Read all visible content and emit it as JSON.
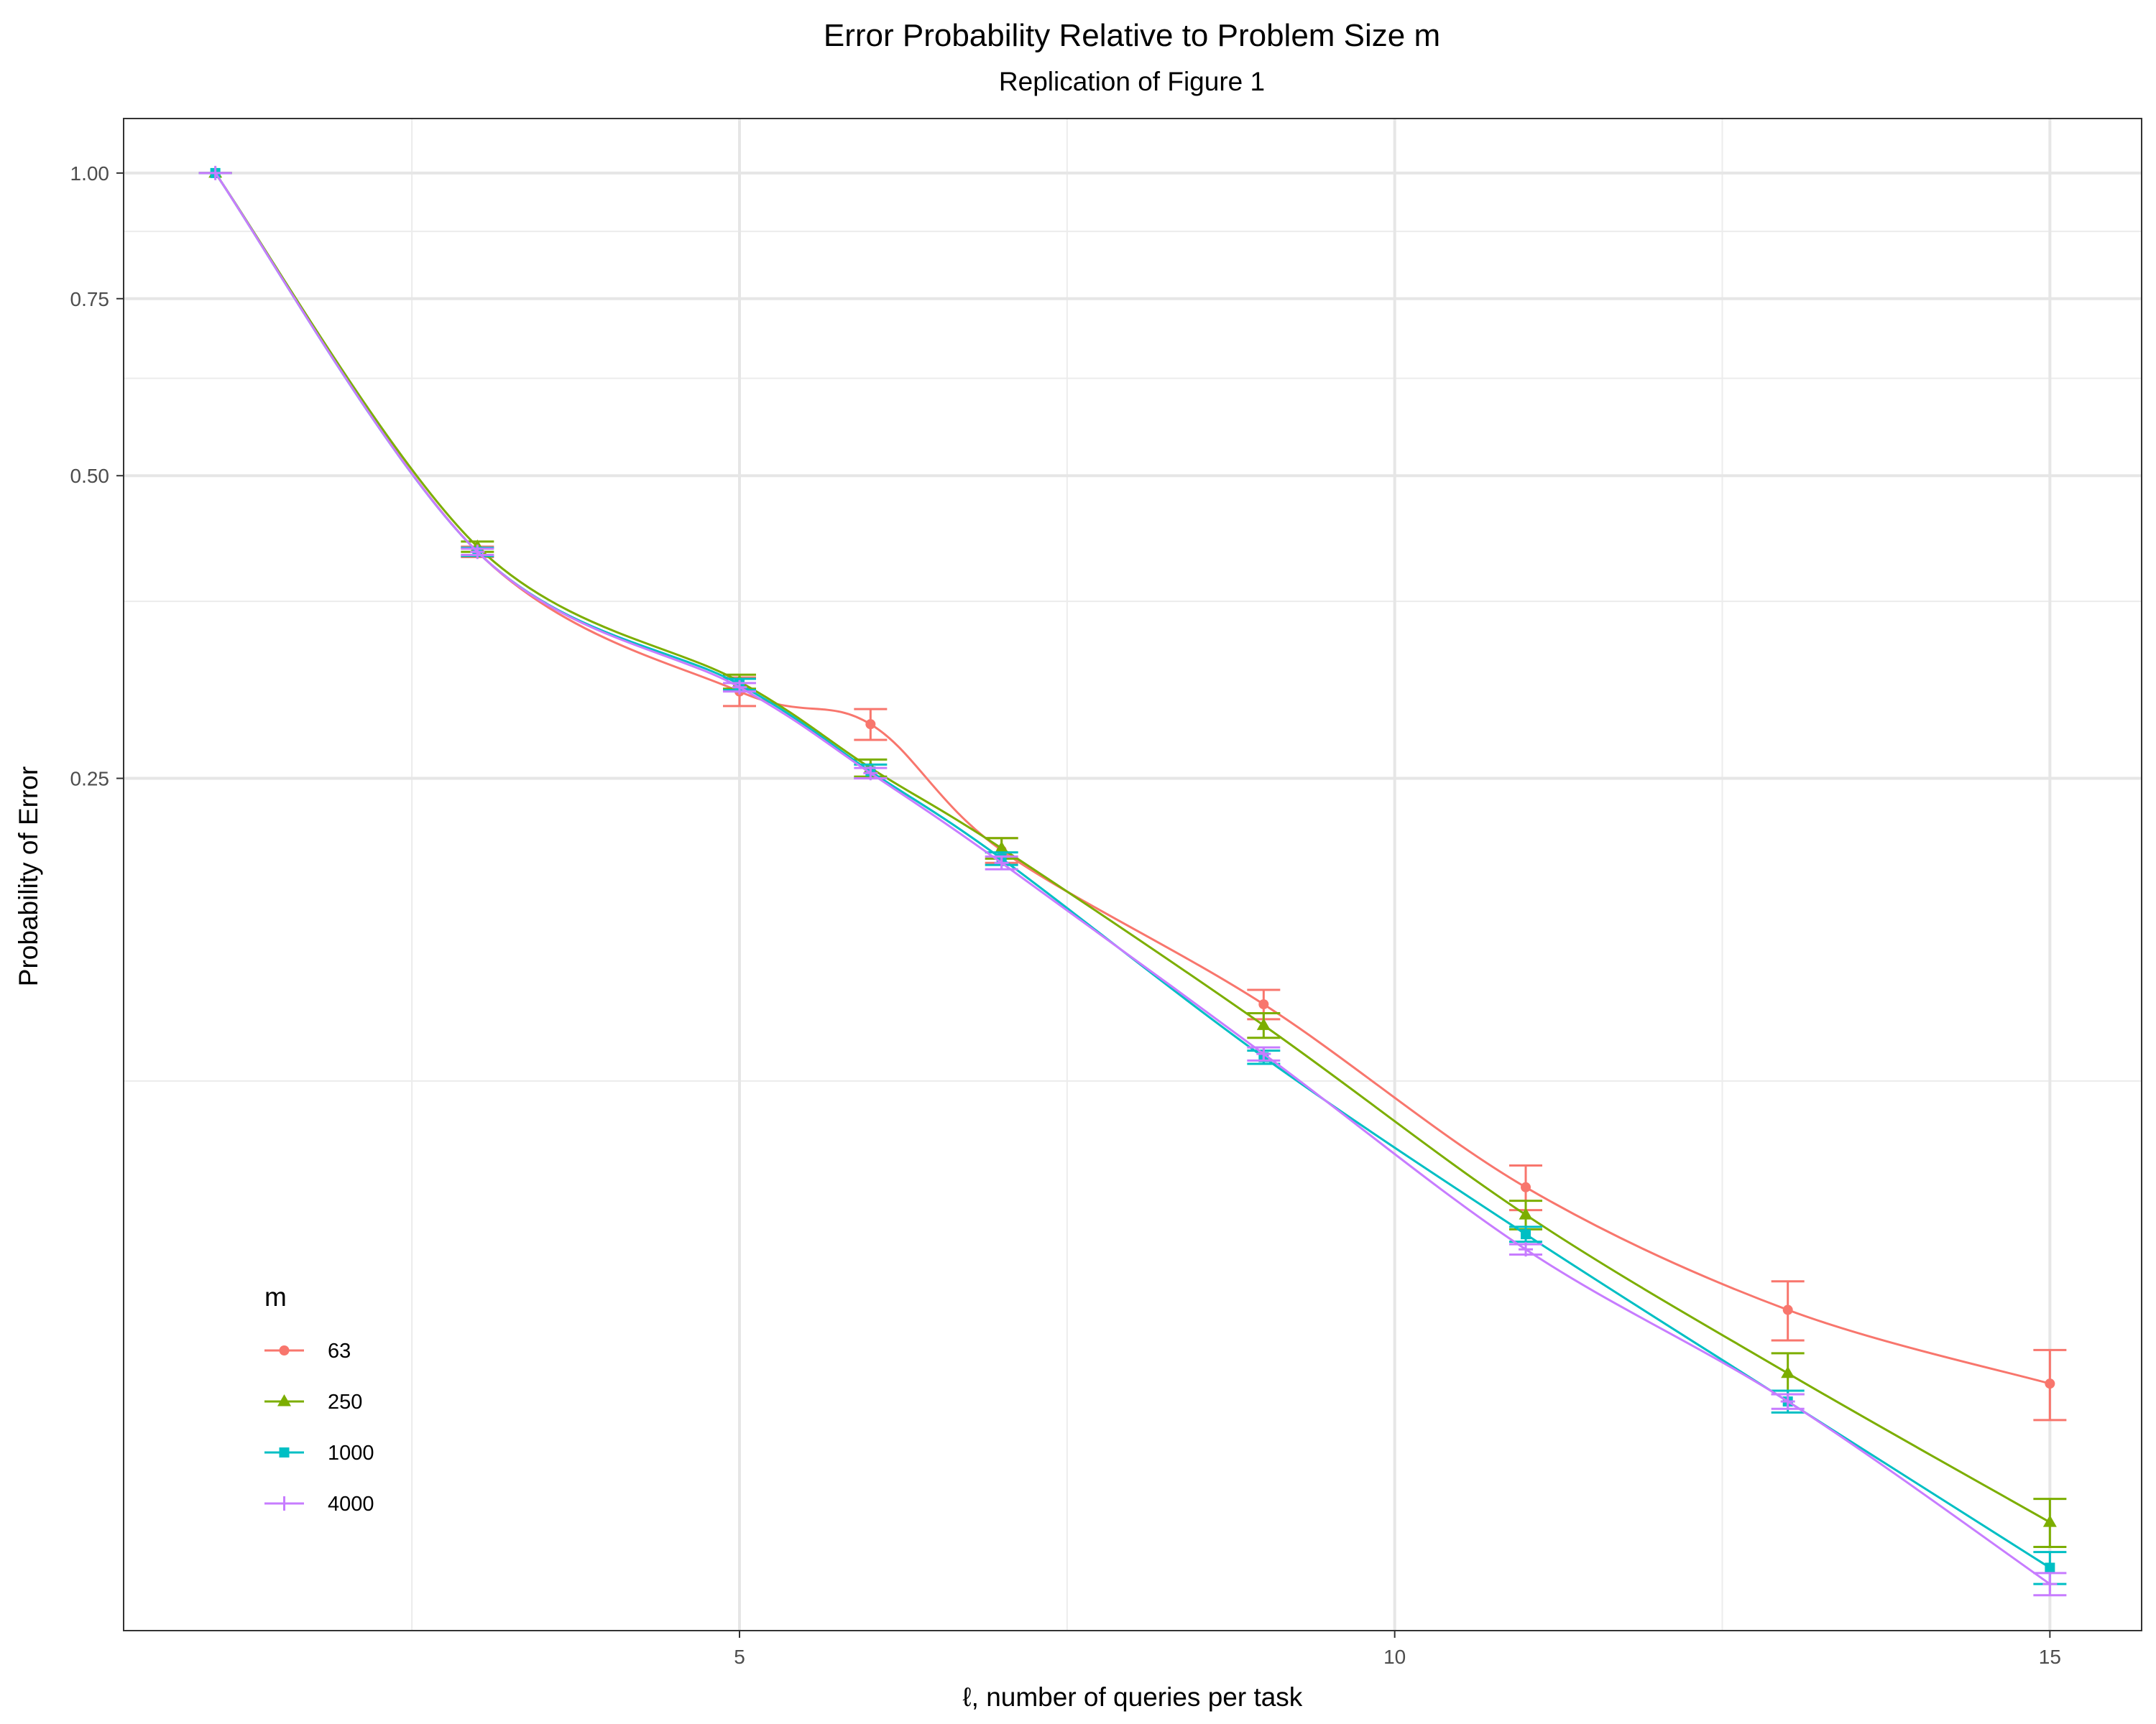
{
  "chart_data": {
    "type": "line",
    "title": "Error Probability Relative to Problem Size m",
    "subtitle": "Replication of Figure 1",
    "xlabel": "ℓ, number of queries per task",
    "ylabel": "Probability of Error",
    "x_scale": "linear",
    "y_scale": "log",
    "xlim": [
      0.3,
      15.7
    ],
    "ylim": [
      0.0355,
      1.133
    ],
    "x_ticks": [
      5,
      10,
      15
    ],
    "x_tick_labels": [
      "5",
      "10",
      "15"
    ],
    "y_ticks": [
      0.25,
      0.5,
      0.75,
      1.0
    ],
    "y_tick_labels": [
      "0.25",
      "0.50",
      "0.75",
      "1.00"
    ],
    "y_minor_gridlines": [
      0.125,
      0.375,
      0.625,
      0.875
    ],
    "grid": true,
    "legend": {
      "title": "m",
      "position": "bottom-left"
    },
    "series": [
      {
        "name": "63",
        "color": "#F8766D",
        "marker": "circle",
        "x": [
          1,
          3,
          5,
          6,
          7,
          9,
          11,
          13,
          15
        ],
        "y": [
          1.0,
          0.42,
          0.305,
          0.283,
          0.212,
          0.149,
          0.098,
          0.074,
          0.0625
        ],
        "err_low": [
          1.0,
          0.415,
          0.295,
          0.273,
          0.206,
          0.144,
          0.093,
          0.069,
          0.0575
        ],
        "err_high": [
          1.0,
          0.425,
          0.315,
          0.293,
          0.218,
          0.154,
          0.103,
          0.079,
          0.0675
        ]
      },
      {
        "name": "250",
        "color": "#7CAE00",
        "marker": "triangle",
        "x": [
          1,
          3,
          5,
          6,
          7,
          9,
          11,
          13,
          15
        ],
        "y": [
          1.0,
          0.425,
          0.312,
          0.256,
          0.213,
          0.142,
          0.092,
          0.064,
          0.0455
        ],
        "err_low": [
          1.0,
          0.42,
          0.307,
          0.251,
          0.208,
          0.138,
          0.089,
          0.061,
          0.043
        ],
        "err_high": [
          1.0,
          0.43,
          0.317,
          0.261,
          0.218,
          0.146,
          0.095,
          0.067,
          0.048
        ]
      },
      {
        "name": "1000",
        "color": "#00BFC4",
        "marker": "square",
        "x": [
          1,
          3,
          5,
          6,
          7,
          9,
          11,
          13,
          15
        ],
        "y": [
          1.0,
          0.42,
          0.31,
          0.254,
          0.208,
          0.132,
          0.088,
          0.06,
          0.041
        ],
        "err_low": [
          1.0,
          0.416,
          0.306,
          0.25,
          0.205,
          0.13,
          0.0865,
          0.0585,
          0.0395
        ],
        "err_high": [
          1.0,
          0.424,
          0.314,
          0.258,
          0.211,
          0.134,
          0.0895,
          0.0615,
          0.0425
        ]
      },
      {
        "name": "4000",
        "color": "#C77CFF",
        "marker": "plus",
        "x": [
          1,
          3,
          5,
          6,
          7,
          9,
          11,
          13,
          15
        ],
        "y": [
          1.0,
          0.42,
          0.308,
          0.253,
          0.206,
          0.133,
          0.085,
          0.06,
          0.0395
        ],
        "err_low": [
          1.0,
          0.417,
          0.305,
          0.25,
          0.203,
          0.131,
          0.084,
          0.059,
          0.0385
        ],
        "err_high": [
          1.0,
          0.423,
          0.311,
          0.256,
          0.209,
          0.135,
          0.086,
          0.061,
          0.0405
        ]
      }
    ]
  }
}
